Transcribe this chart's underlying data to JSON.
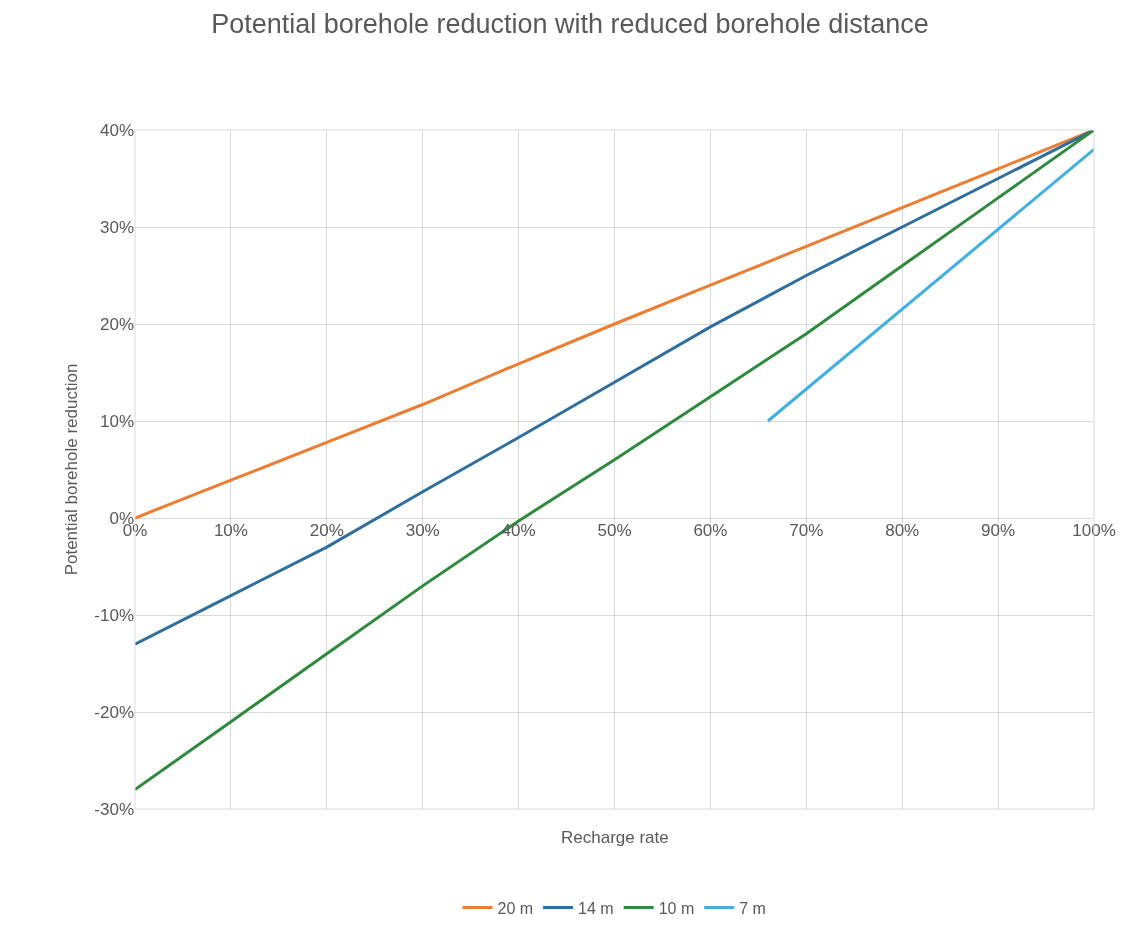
{
  "chart_data": {
    "type": "line",
    "title": "Potential borehole reduction with reduced borehole distance",
    "xlabel": "Recharge rate",
    "ylabel": "Potential borehole reduction",
    "xlim": [
      0,
      100
    ],
    "ylim": [
      -30,
      40
    ],
    "xticks": [
      {
        "value": 0,
        "label": "0%"
      },
      {
        "value": 10,
        "label": "10%"
      },
      {
        "value": 20,
        "label": "20%"
      },
      {
        "value": 30,
        "label": "30%"
      },
      {
        "value": 40,
        "label": "40%"
      },
      {
        "value": 50,
        "label": "50%"
      },
      {
        "value": 60,
        "label": "60%"
      },
      {
        "value": 70,
        "label": "70%"
      },
      {
        "value": 80,
        "label": "80%"
      },
      {
        "value": 90,
        "label": "90%"
      },
      {
        "value": 100,
        "label": "100%"
      }
    ],
    "yticks": [
      {
        "value": -30,
        "label": "-30%"
      },
      {
        "value": -20,
        "label": "-20%"
      },
      {
        "value": -10,
        "label": "-10%"
      },
      {
        "value": 0,
        "label": "0%"
      },
      {
        "value": 10,
        "label": "10%"
      },
      {
        "value": 20,
        "label": "20%"
      },
      {
        "value": 30,
        "label": "30%"
      },
      {
        "value": 40,
        "label": "40%"
      }
    ],
    "grid": true,
    "legend": "bottom",
    "marker": "none",
    "line_style": "solid",
    "series": [
      {
        "name": "20 m",
        "color": "#ed7d31",
        "x": [
          0,
          10,
          20,
          30,
          40,
          50,
          60,
          70,
          80,
          90,
          100
        ],
        "values": [
          0,
          3.9,
          7.8,
          11.7,
          15.9,
          20,
          24,
          28,
          32,
          36,
          40
        ]
      },
      {
        "name": "14 m",
        "color": "#2f6f9f",
        "x": [
          0,
          10,
          20,
          30,
          40,
          50,
          60,
          70,
          80,
          90,
          100
        ],
        "values": [
          -13,
          -8,
          -3,
          2.7,
          8.3,
          14,
          19.7,
          25,
          30,
          35,
          40
        ]
      },
      {
        "name": "10 m",
        "color": "#2e8b3e",
        "x": [
          0,
          10,
          20,
          30,
          40,
          50,
          60,
          70,
          80,
          90,
          100
        ],
        "values": [
          -28,
          -21,
          -14,
          -7,
          -0.3,
          6,
          12.5,
          19,
          26,
          33,
          40
        ]
      },
      {
        "name": "7 m",
        "color": "#3fb0e0",
        "x": [
          66,
          100
        ],
        "values": [
          10,
          38
        ]
      }
    ]
  }
}
